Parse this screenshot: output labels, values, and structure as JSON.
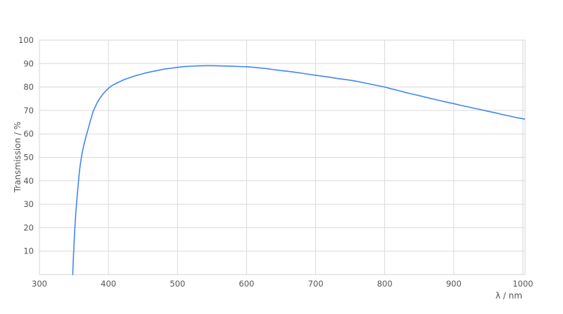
{
  "chart_data": {
    "type": "line",
    "title": "",
    "xlabel": "λ / nm",
    "ylabel": "Transmission / %",
    "xlim": [
      300,
      1003.1
    ],
    "ylim": [
      0,
      100
    ],
    "x_ticks": [
      300,
      400,
      500,
      600,
      700,
      800,
      900,
      1000
    ],
    "y_ticks": [
      10,
      20,
      30,
      40,
      50,
      60,
      70,
      80,
      90,
      100
    ],
    "grid": true,
    "legend_position": "none",
    "colors": {
      "line": "#4285f4",
      "grid": "#d9d9d9",
      "border": "#d6d6d6",
      "tick_label": "#545454",
      "background": "#ffffff"
    },
    "series": [
      {
        "name": "Transmission",
        "x": [
          348.3,
          349,
          350,
          351,
          352,
          353,
          354,
          355,
          356,
          357,
          358,
          359,
          360,
          362,
          364,
          366,
          368,
          370,
          372,
          374,
          376,
          378,
          380,
          382,
          384,
          386,
          388,
          390,
          392,
          394,
          396,
          398,
          400,
          405,
          410,
          415,
          420,
          425,
          430,
          435,
          440,
          445,
          450,
          455,
          460,
          465,
          470,
          475,
          480,
          485,
          490,
          495,
          500,
          505,
          510,
          515,
          520,
          530,
          540,
          550,
          560,
          570,
          580,
          590,
          600,
          610,
          620,
          630,
          640,
          650,
          660,
          670,
          680,
          690,
          700,
          710,
          720,
          730,
          740,
          750,
          760,
          770,
          780,
          790,
          800,
          810,
          820,
          830,
          840,
          850,
          860,
          870,
          880,
          890,
          900,
          910,
          920,
          930,
          940,
          950,
          960,
          970,
          980,
          990,
          1000,
          1002.5
        ],
        "y": [
          0,
          6,
          12.5,
          18,
          23,
          27.5,
          31,
          34.5,
          38,
          41,
          44,
          46.5,
          48.5,
          52,
          54.8,
          57.2,
          59.5,
          61.5,
          63.7,
          65.8,
          67.8,
          69.7,
          71,
          72.3,
          73.5,
          74.5,
          75.4,
          76.2,
          77,
          77.7,
          78.3,
          78.9,
          79.5,
          80.6,
          81.4,
          82.1,
          82.8,
          83.4,
          83.9,
          84.4,
          84.9,
          85.3,
          85.7,
          86.1,
          86.4,
          86.7,
          87,
          87.3,
          87.6,
          87.8,
          88,
          88.2,
          88.4,
          88.55,
          88.7,
          88.8,
          88.9,
          89,
          89.1,
          89.1,
          89,
          88.95,
          88.85,
          88.75,
          88.65,
          88.4,
          88.1,
          87.8,
          87.4,
          87,
          86.7,
          86.3,
          85.9,
          85.45,
          85,
          84.6,
          84.2,
          83.7,
          83.3,
          82.9,
          82.4,
          81.8,
          81.2,
          80.6,
          80,
          79.2,
          78.5,
          77.7,
          77,
          76.3,
          75.6,
          74.9,
          74.2,
          73.5,
          72.9,
          72.2,
          71.6,
          70.9,
          70.3,
          69.6,
          69,
          68.3,
          67.7,
          67,
          66.5,
          66.3
        ]
      }
    ]
  }
}
